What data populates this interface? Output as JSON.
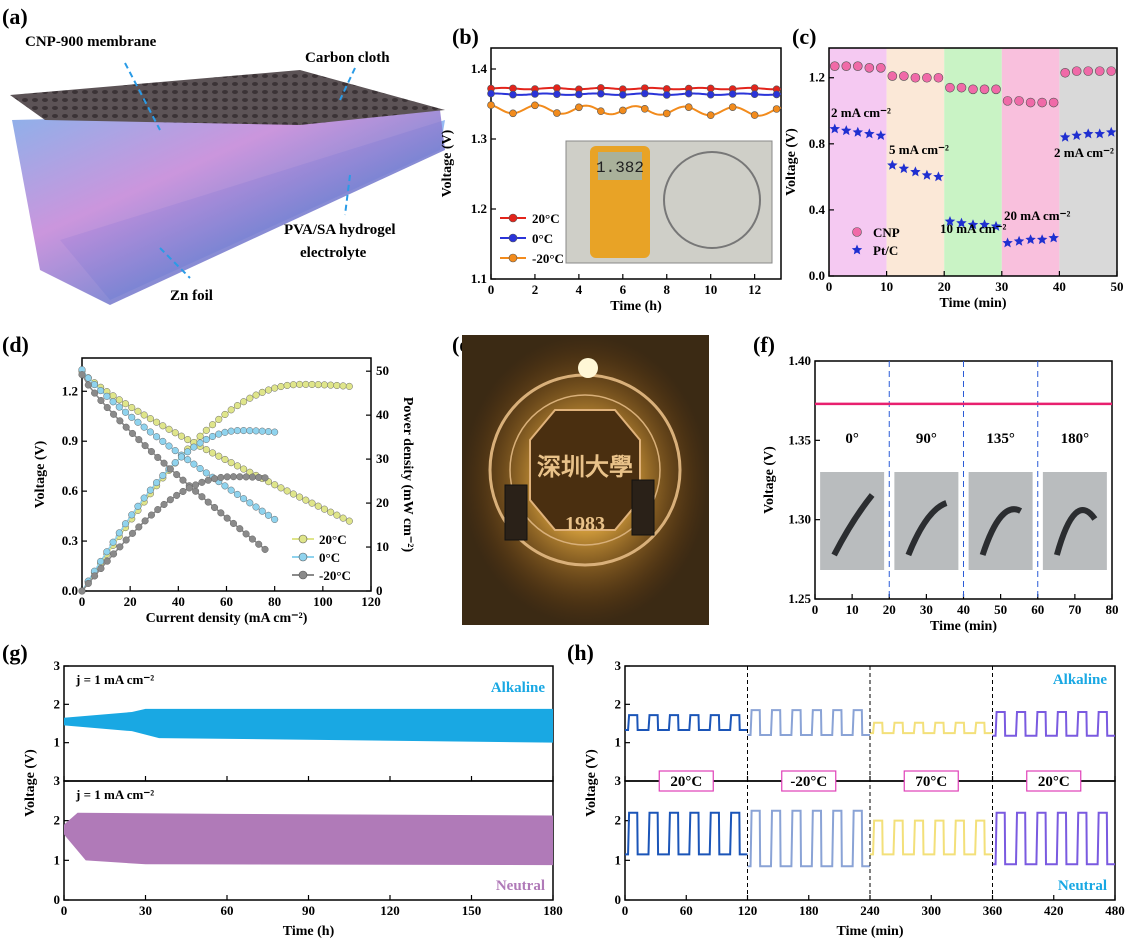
{
  "panels": {
    "a": {
      "label": "(a)",
      "callouts": [
        "CNP-900 membrane",
        "Carbon cloth",
        "PVA/SA hydrogel",
        "electrolyte",
        "Zn foil"
      ]
    },
    "e": {
      "label": "(e)",
      "seal_text": [
        "1983"
      ]
    }
  },
  "chart_data": [
    {
      "id": "b",
      "label": "(b)",
      "type": "line",
      "xlabel": "Time (h)",
      "ylabel": "Voltage (V)",
      "xlim": [
        0,
        13.2
      ],
      "ylim": [
        1.1,
        1.43
      ],
      "xticks": [
        0,
        2,
        4,
        6,
        8,
        10,
        12
      ],
      "yticks": [
        1.1,
        1.2,
        1.3,
        1.4
      ],
      "legend": "bottom-left",
      "inset": "photo of multimeter reading 1.382",
      "series": [
        {
          "name": "20°C",
          "color": "#e3241b",
          "marker": "circle",
          "base": 1.372,
          "amp": 0.001
        },
        {
          "name": "0°C",
          "color": "#2a34d9",
          "marker": "circle",
          "base": 1.364,
          "amp": 0.001
        },
        {
          "name": "-20°C",
          "color": "#f28b1c",
          "marker": "circle",
          "base": 1.343,
          "amp": 0.006
        }
      ]
    },
    {
      "id": "c",
      "label": "(c)",
      "type": "scatter",
      "xlabel": "Time (min)",
      "ylabel": "Voltage (V)",
      "xlim": [
        0,
        50
      ],
      "ylim": [
        0,
        1.38
      ],
      "xticks": [
        0,
        10,
        20,
        30,
        40,
        50
      ],
      "yticks": [
        0.0,
        0.4,
        0.8,
        1.2
      ],
      "legend": "left",
      "bands": [
        {
          "x0": 0,
          "x1": 10,
          "color": "#f5c9f2"
        },
        {
          "x0": 10,
          "x1": 20,
          "color": "#fbe8d7"
        },
        {
          "x0": 20,
          "x1": 30,
          "color": "#c9f3c5"
        },
        {
          "x0": 30,
          "x1": 40,
          "color": "#f9c0dd"
        },
        {
          "x0": 40,
          "x1": 50,
          "color": "#d9d9d9"
        }
      ],
      "annotations": [
        "2 mA cm⁻²",
        "5 mA cm⁻²",
        "10 mA cm⁻²",
        "20 mA cm⁻²",
        "2 mA cm⁻²"
      ],
      "series": [
        {
          "name": "CNP",
          "color": "#f06aa8",
          "marker": "circle",
          "x": [
            1,
            3,
            5,
            7,
            9,
            11,
            13,
            15,
            17,
            19,
            21,
            23,
            25,
            27,
            29,
            31,
            33,
            35,
            37,
            39,
            41,
            43,
            45,
            47,
            49
          ],
          "y": [
            1.27,
            1.27,
            1.27,
            1.26,
            1.26,
            1.21,
            1.21,
            1.2,
            1.2,
            1.2,
            1.14,
            1.14,
            1.13,
            1.13,
            1.13,
            1.06,
            1.06,
            1.05,
            1.05,
            1.05,
            1.23,
            1.24,
            1.24,
            1.24,
            1.24
          ]
        },
        {
          "name": "Pt/C",
          "color": "#1f2fd0",
          "marker": "star",
          "x": [
            1,
            3,
            5,
            7,
            9,
            11,
            13,
            15,
            17,
            19,
            21,
            23,
            25,
            27,
            29,
            31,
            33,
            35,
            37,
            39,
            41,
            43,
            45,
            47,
            49
          ],
          "y": [
            0.89,
            0.88,
            0.87,
            0.86,
            0.85,
            0.67,
            0.65,
            0.63,
            0.61,
            0.6,
            0.33,
            0.32,
            0.31,
            0.31,
            0.3,
            0.2,
            0.21,
            0.22,
            0.22,
            0.23,
            0.84,
            0.85,
            0.86,
            0.86,
            0.87
          ]
        }
      ]
    },
    {
      "id": "d",
      "label": "(d)",
      "type": "line",
      "xlabel": "Current density (mA cm⁻²)",
      "ylabel": "Voltage (V)",
      "y2label": "Power density (mW cm⁻²)",
      "xlim": [
        0,
        120
      ],
      "ylim": [
        0,
        1.4
      ],
      "y2lim": [
        0,
        53
      ],
      "xticks": [
        0,
        20,
        40,
        60,
        80,
        100,
        120
      ],
      "yticks": [
        0.0,
        0.3,
        0.6,
        0.9,
        1.2
      ],
      "y2ticks": [
        0,
        10,
        20,
        30,
        40,
        50
      ],
      "legend": "bottom-right",
      "series": [
        {
          "name": "20°C",
          "color": "#dfe58a",
          "xmax": 111,
          "v0": 1.32,
          "vend": 0.42,
          "pmax": 47
        },
        {
          "name": "0°C",
          "color": "#8fd3ee",
          "xmax": 80,
          "v0": 1.33,
          "vend": 0.43,
          "pmax": 36.5
        },
        {
          "name": "-20°C",
          "color": "#8a8a8a",
          "xmax": 76,
          "v0": 1.3,
          "vend": 0.25,
          "pmax": 26
        }
      ]
    },
    {
      "id": "f",
      "label": "(f)",
      "type": "line",
      "xlabel": "Time (min)",
      "ylabel": "Voltage (V)",
      "xlim": [
        0,
        80
      ],
      "ylim": [
        1.25,
        1.4
      ],
      "xticks": [
        0,
        10,
        20,
        30,
        40,
        50,
        60,
        70,
        80
      ],
      "yticks": [
        1.25,
        1.3,
        1.35,
        1.4
      ],
      "dividers": [
        20,
        40,
        60
      ],
      "angles": [
        "0°",
        "90°",
        "135°",
        "180°"
      ],
      "series": [
        {
          "color": "#e8206f",
          "x": [
            0,
            80
          ],
          "y": [
            1.373,
            1.373
          ]
        }
      ]
    },
    {
      "id": "g",
      "label": "(g)",
      "type": "area",
      "xlabel": "Time (h)",
      "ylabel": "Voltage (V)",
      "xlim": [
        0,
        180
      ],
      "xticks": [
        0,
        30,
        60,
        90,
        120,
        150,
        180
      ],
      "top": {
        "name": "Alkaline",
        "note": "j = 1 mA cm⁻²",
        "color": "#19a8e3",
        "ylim": [
          0,
          3
        ],
        "yticks": [
          0,
          1,
          2,
          3
        ],
        "upper": [
          [
            0,
            1.65
          ],
          [
            25,
            1.8
          ],
          [
            30,
            1.88
          ],
          [
            180,
            1.88
          ]
        ],
        "lower": [
          [
            0,
            1.45
          ],
          [
            25,
            1.3
          ],
          [
            35,
            1.12
          ],
          [
            180,
            1.0
          ]
        ]
      },
      "bottom": {
        "name": "Neutral",
        "note": "j = 1 mA cm⁻²",
        "color": "#b07ab8",
        "ylim": [
          0,
          3
        ],
        "yticks": [
          0,
          1,
          2,
          3
        ],
        "upper": [
          [
            0,
            1.9
          ],
          [
            5,
            2.2
          ],
          [
            60,
            2.17
          ],
          [
            180,
            2.13
          ]
        ],
        "lower": [
          [
            0,
            1.65
          ],
          [
            8,
            1.0
          ],
          [
            30,
            0.9
          ],
          [
            180,
            0.88
          ]
        ]
      }
    },
    {
      "id": "h",
      "label": "(h)",
      "type": "line",
      "xlabel": "Time (min)",
      "ylabel": "Voltage (V)",
      "xlim": [
        0,
        480
      ],
      "xticks": [
        0,
        60,
        120,
        180,
        240,
        300,
        360,
        420,
        480
      ],
      "dividers": [
        120,
        240,
        360
      ],
      "temps": [
        "20°C",
        "-20°C",
        "70°C",
        "20°C"
      ],
      "top": {
        "name": "Alkaline",
        "ylim": [
          0,
          3
        ],
        "yticks": [
          0,
          1,
          2,
          3
        ],
        "segments": [
          {
            "color": "#1b55b8",
            "lo": 1.33,
            "hi": 1.72
          },
          {
            "color": "#8aa3d6",
            "lo": 1.2,
            "hi": 1.85
          },
          {
            "color": "#f3e07a",
            "lo": 1.25,
            "hi": 1.52
          },
          {
            "color": "#7a5ae0",
            "lo": 1.18,
            "hi": 1.8
          }
        ]
      },
      "bottom": {
        "name": "Neutral",
        "ylim": [
          0,
          3
        ],
        "yticks": [
          0,
          1,
          2,
          3
        ],
        "segments": [
          {
            "color": "#1b55b8",
            "lo": 1.15,
            "hi": 2.2
          },
          {
            "color": "#8aa3d6",
            "lo": 0.85,
            "hi": 2.25
          },
          {
            "color": "#f3e07a",
            "lo": 1.15,
            "hi": 2.0
          },
          {
            "color": "#7a5ae0",
            "lo": 0.9,
            "hi": 2.2
          }
        ]
      }
    }
  ]
}
